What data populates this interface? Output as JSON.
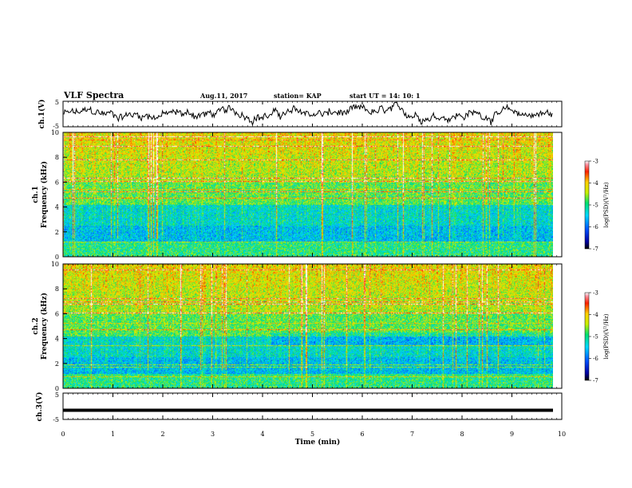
{
  "header": {
    "title": "VLF Spectra",
    "date": "Aug.11, 2017",
    "station": "station= KAP",
    "start": "start  UT =   14: 10: 1"
  },
  "chart_data": {
    "type": "heatmap",
    "x": {
      "label": "Time  (min)",
      "range": [
        0,
        10
      ],
      "ticks": [
        "0",
        "1",
        "2",
        "3",
        "4",
        "5",
        "6",
        "7",
        "8",
        "9",
        "10"
      ]
    },
    "panels": [
      {
        "id": "ch1-waveform",
        "type": "line",
        "ylabel": "ch.1(V)",
        "ylim": [
          -5,
          5
        ],
        "yticks": [
          "5",
          "-5"
        ]
      },
      {
        "id": "ch1-spectrogram",
        "type": "heatmap",
        "ylabel_top": "ch.1",
        "ylabel": "Frequency  (kHz)",
        "ylim": [
          0,
          10
        ],
        "yticks": [
          "0",
          "2",
          "4",
          "6",
          "8",
          "10"
        ],
        "colorbar": {
          "label": "log(PSD)(V²/Hz)",
          "range": [
            -7,
            -3
          ],
          "ticks": [
            "-3",
            "-4",
            "-5",
            "-6",
            "-7"
          ]
        }
      },
      {
        "id": "ch2-spectrogram",
        "type": "heatmap",
        "ylabel_top": "ch.2",
        "ylabel": "Frequency  (kHz)",
        "ylim": [
          0,
          10
        ],
        "yticks": [
          "0",
          "2",
          "4",
          "6",
          "8",
          "10"
        ],
        "colorbar": {
          "label": "log(PSD)(V²/Hz)",
          "range": [
            -7,
            -3
          ],
          "ticks": [
            "-3",
            "-4",
            "-5",
            "-6",
            "-7"
          ]
        }
      },
      {
        "id": "ch3-waveform",
        "type": "line",
        "ylabel": "ch.3(V)",
        "ylim": [
          -5,
          5
        ],
        "yticks": [
          "5",
          "-5"
        ],
        "level": -1.5
      }
    ]
  }
}
